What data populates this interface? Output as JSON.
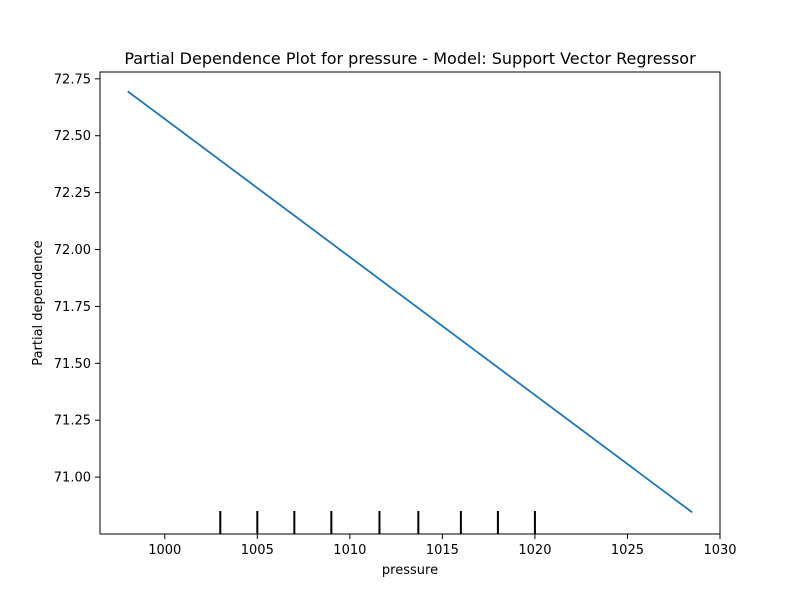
{
  "chart_data": {
    "type": "line",
    "title": "Partial Dependence Plot for pressure - Model: Support Vector Regressor",
    "xlabel": "pressure",
    "ylabel": "Partial dependence",
    "xlim": [
      996.5,
      1030
    ],
    "ylim": [
      70.75,
      72.78
    ],
    "x_ticks": [
      1000,
      1005,
      1010,
      1015,
      1020,
      1025,
      1030
    ],
    "y_ticks": [
      71.0,
      71.25,
      71.5,
      71.75,
      72.0,
      72.25,
      72.5,
      72.75
    ],
    "series": [
      {
        "color": "#1f77b4",
        "x": [
          998.0,
          1028.5
        ],
        "y": [
          72.695,
          70.845
        ]
      }
    ],
    "deciles": [
      1003.0,
      1005.0,
      1007.0,
      1009.0,
      1011.6,
      1013.7,
      1016.0,
      1018.0,
      1020.0
    ],
    "grid": false,
    "legend": "none"
  }
}
